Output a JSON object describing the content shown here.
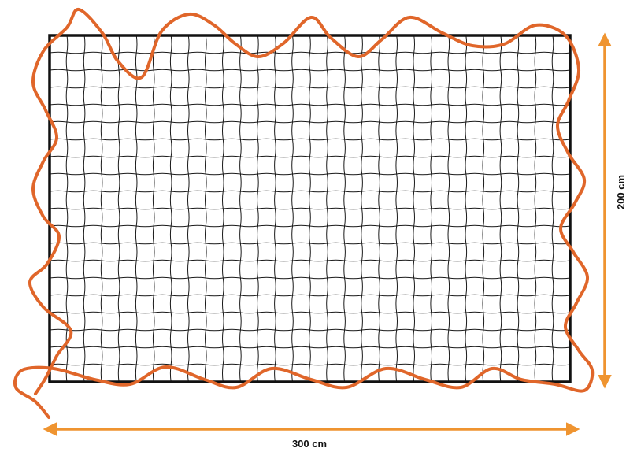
{
  "dimensions": {
    "width_label": "300 cm",
    "height_label": "200 cm"
  },
  "net": {
    "columns": 30,
    "rows": 20
  },
  "colors": {
    "frame": "#111111",
    "mesh": "#1a1a1a",
    "rope": "#e0662a",
    "arrow": "#ef9430"
  }
}
